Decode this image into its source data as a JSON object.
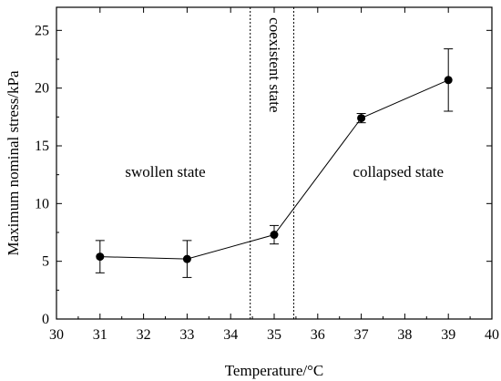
{
  "chart_data": {
    "type": "line",
    "xlabel": "Temperature/°C",
    "ylabel": "Maximum nominal stress/kPa",
    "xlim": [
      30,
      40
    ],
    "ylim": [
      0,
      27
    ],
    "x_ticks": [
      30,
      31,
      32,
      33,
      34,
      35,
      36,
      37,
      38,
      39,
      40
    ],
    "y_ticks": [
      0,
      5,
      10,
      15,
      20,
      25
    ],
    "grid": false,
    "series": [
      {
        "x": [
          31,
          33,
          35,
          37,
          39
        ],
        "y": [
          5.4,
          5.2,
          7.3,
          17.4,
          20.7
        ],
        "error": [
          1.4,
          1.6,
          0.8,
          0.4,
          2.7
        ],
        "color": "#000000"
      }
    ],
    "region_lines": [
      34.45,
      35.45
    ],
    "annotations": [
      {
        "text": "swollen state",
        "x": 32.5,
        "y": 12.3
      },
      {
        "text": "coexistent state",
        "x": 35.0,
        "y": 22.0,
        "rotate": true
      },
      {
        "text": "collapsed state",
        "x": 37.85,
        "y": 12.3
      }
    ]
  }
}
